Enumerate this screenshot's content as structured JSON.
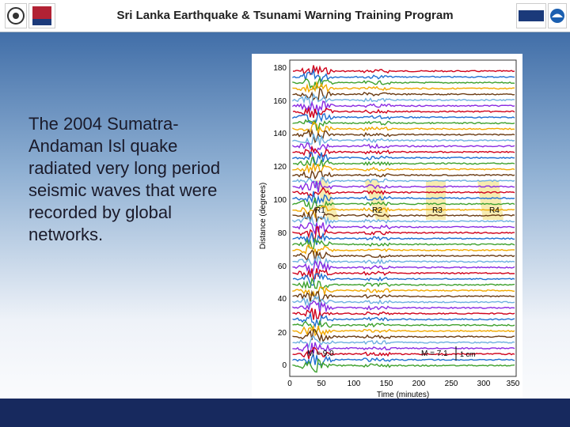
{
  "header": {
    "title": "Sri Lanka Earthquake & Tsunami Warning Training Program"
  },
  "body_text": "The 2004 Sumatra-Andaman Isl quake radiated very long period seismic waves that were recorded by global networks.",
  "figure": {
    "ylabel": "Distance (degrees)",
    "xlabel": "Time (minutes)",
    "y_ticks": [
      "180",
      "160",
      "140",
      "120",
      "100",
      "80",
      "60",
      "40",
      "20",
      "0"
    ],
    "x_ticks": [
      "0",
      "50",
      "100",
      "150",
      "200",
      "250",
      "300",
      "350"
    ],
    "phase_labels": [
      "R1",
      "R2",
      "R3",
      "R4"
    ],
    "magnitude_left": "M = 9.0",
    "magnitude_right": "M = 7.1",
    "scale_label": "1 cm"
  },
  "colors": {
    "header_bg": "#ffffff",
    "footer_bg": "#17295e",
    "trace_colors": [
      "#d0021b",
      "#1f6fd1",
      "#3ea12e",
      "#f2a900",
      "#6b3b12",
      "#6fb0e0",
      "#8a2be2"
    ]
  }
}
